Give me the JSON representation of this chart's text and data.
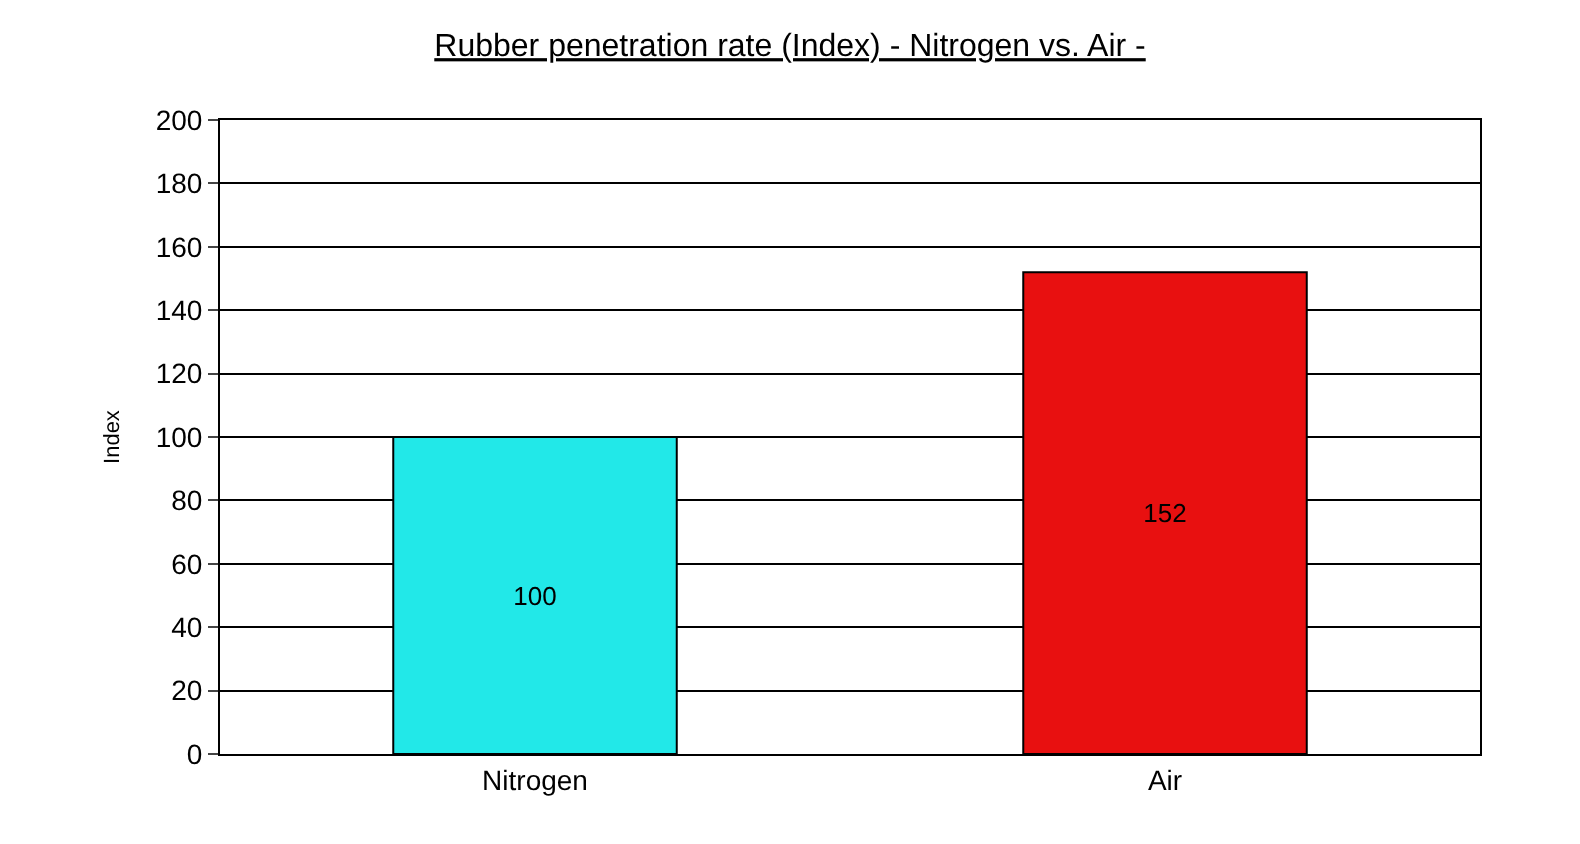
{
  "chart_data": {
    "type": "bar",
    "title": "Rubber penetration rate (Index) - Nitrogen vs. Air -",
    "ylabel": "Index",
    "categories": [
      "Nitrogen",
      "Air"
    ],
    "values": [
      100,
      152
    ],
    "colors": [
      "#22e8e8",
      "#e81010"
    ],
    "ylim": [
      0,
      200
    ],
    "yticks": [
      0,
      20,
      40,
      60,
      80,
      100,
      120,
      140,
      160,
      180,
      200
    ],
    "grid": "y",
    "data_labels": true,
    "legend": false
  }
}
